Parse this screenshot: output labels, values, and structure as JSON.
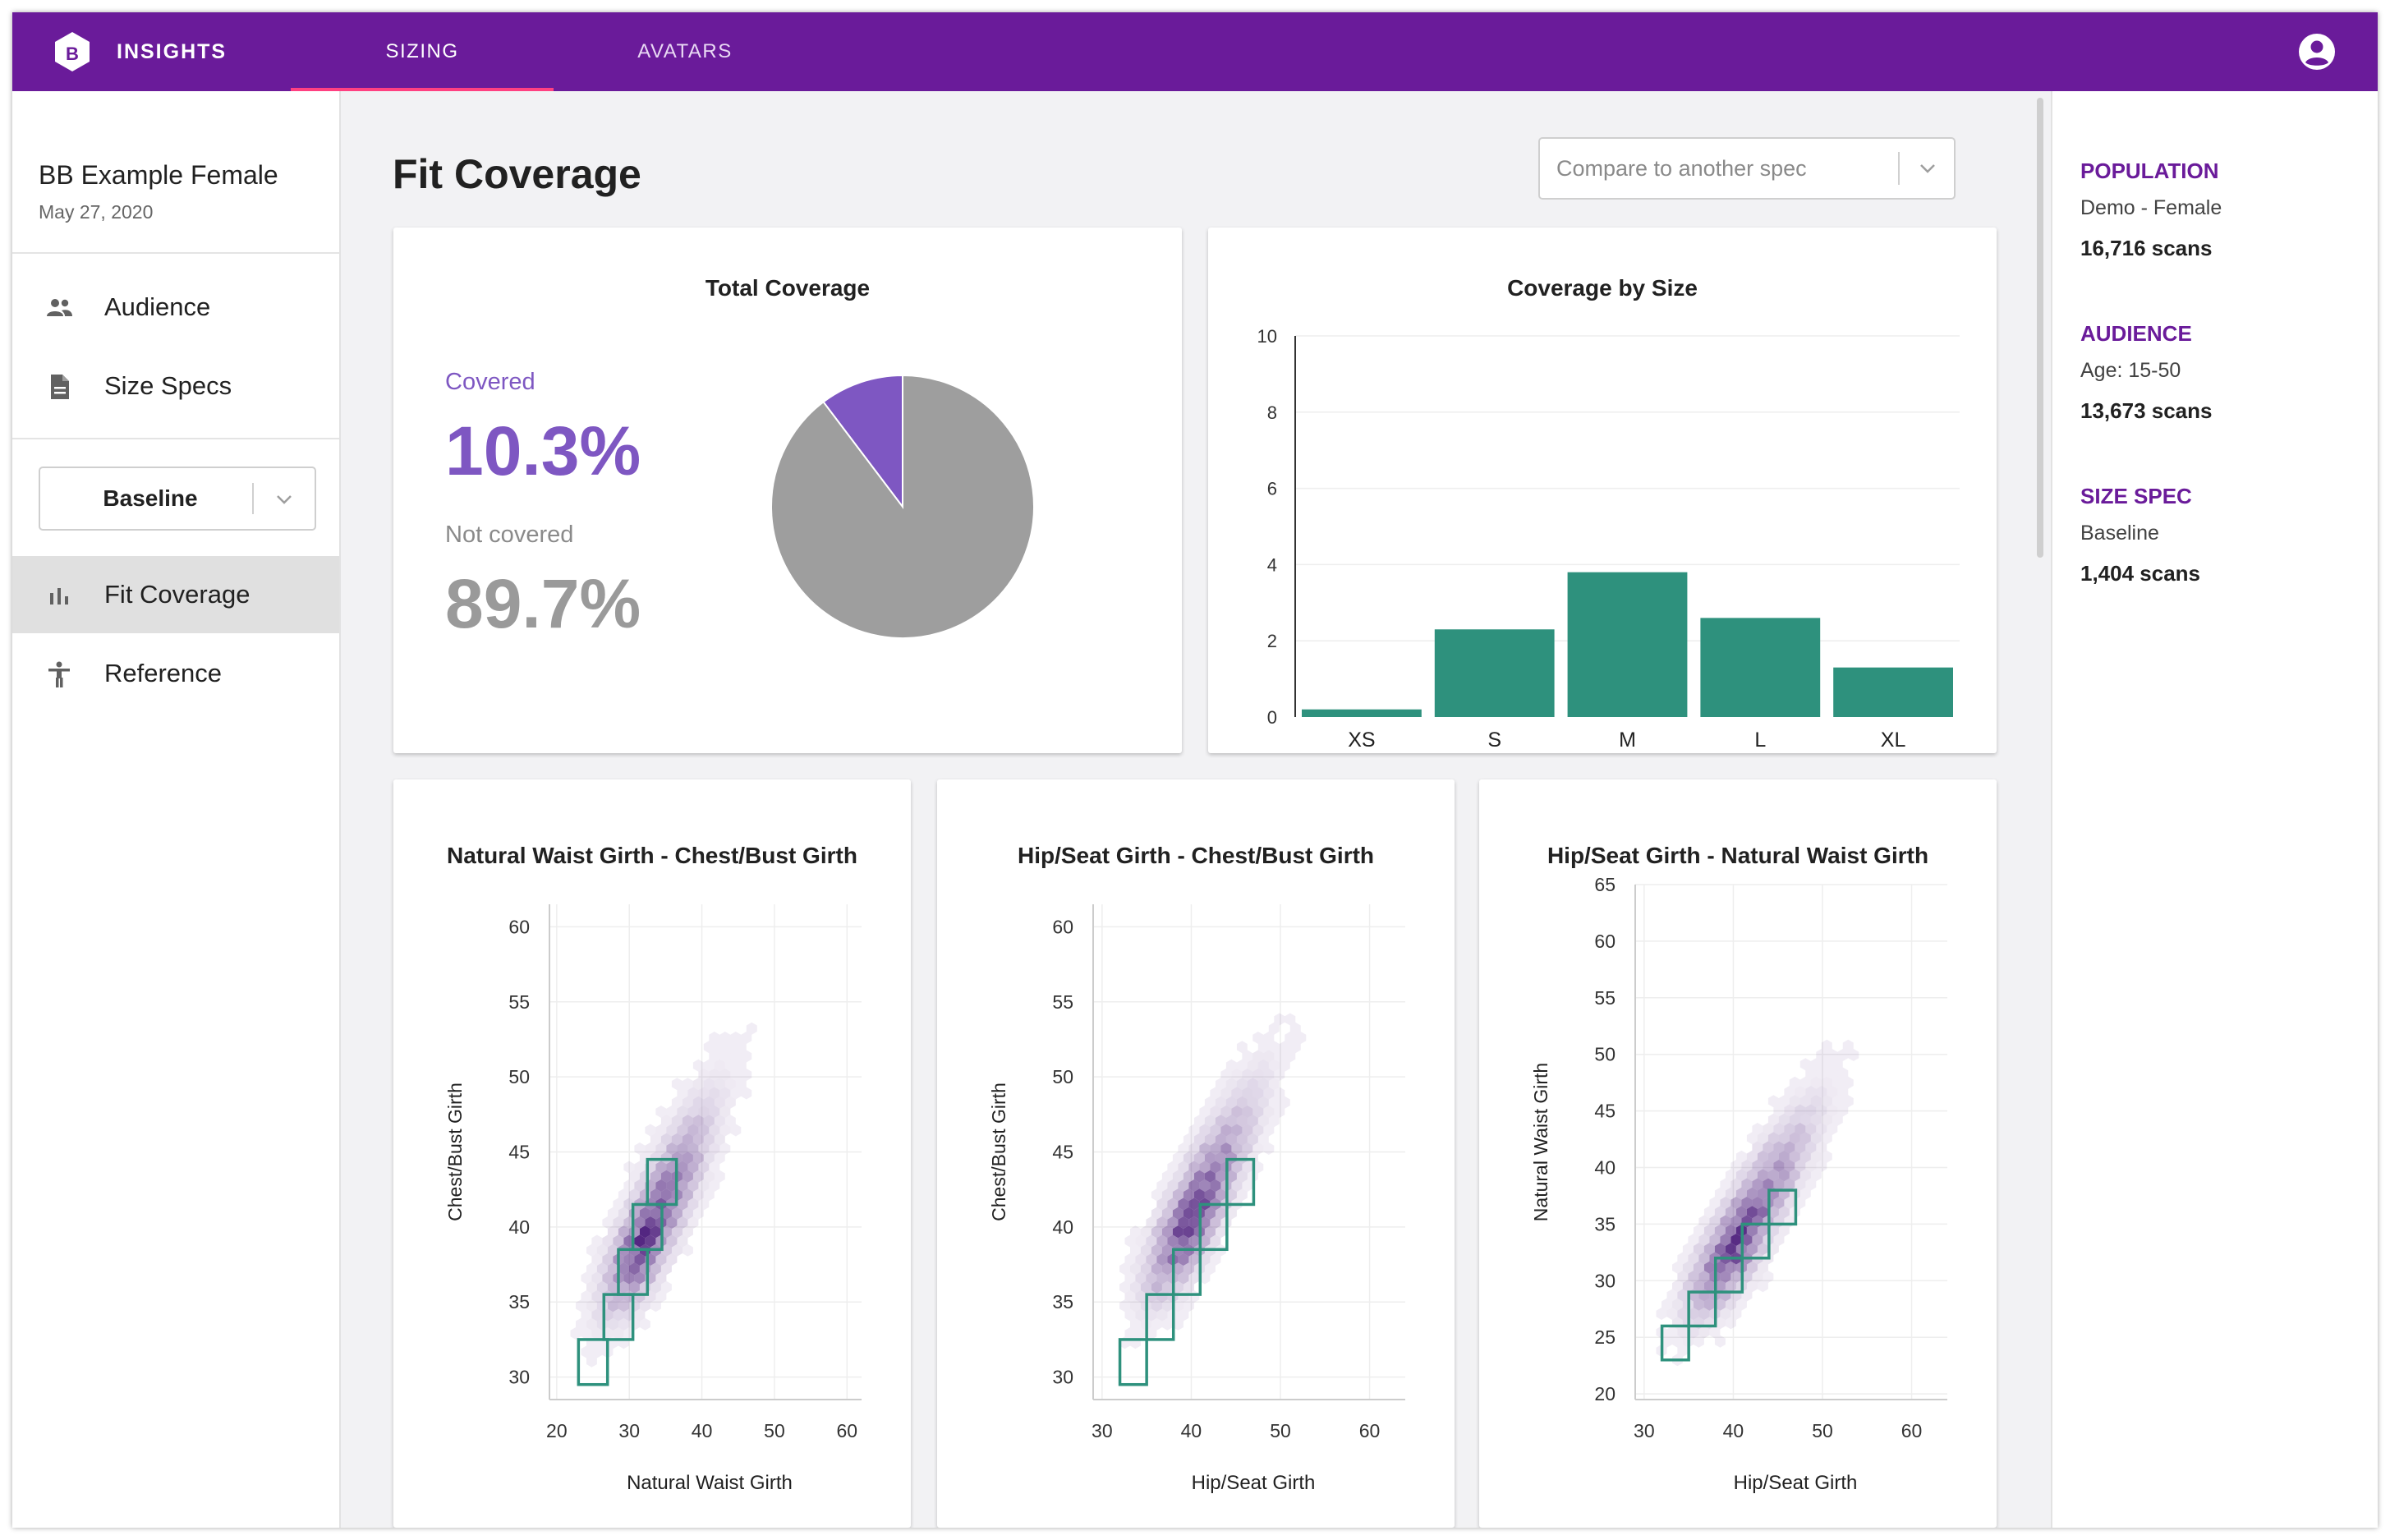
{
  "app": {
    "brand": "INSIGHTS",
    "logo_letter": "B"
  },
  "tabs": [
    {
      "label": "SIZING",
      "active": true
    },
    {
      "label": "AVATARS",
      "active": false
    }
  ],
  "colors": {
    "primary": "#6a1b9a",
    "accent_indicator": "#ff4081",
    "covered": "#7e57c2",
    "not_covered": "#9e9e9e",
    "bars": "#2e917d",
    "density": "#4a1a7a",
    "boxes": "#2e917d"
  },
  "project": {
    "name": "BB Example Female",
    "date": "May 27, 2020"
  },
  "sidebar": {
    "items": [
      {
        "label": "Audience",
        "icon": "people-icon"
      },
      {
        "label": "Size Specs",
        "icon": "document-icon"
      }
    ],
    "spec_select": {
      "value": "Baseline"
    },
    "sub_items": [
      {
        "label": "Fit Coverage",
        "icon": "bar-chart-icon",
        "selected": true
      },
      {
        "label": "Reference",
        "icon": "accessibility-icon",
        "selected": false
      }
    ]
  },
  "main": {
    "title": "Fit Coverage",
    "compare_placeholder": "Compare to another spec",
    "total_coverage": {
      "title": "Total Coverage",
      "covered_label": "Covered",
      "covered_value": "10.3%",
      "not_covered_label": "Not covered",
      "not_covered_value": "89.7%"
    }
  },
  "right_panel": {
    "population": {
      "heading": "POPULATION",
      "name": "Demo - Female",
      "count": "16,716 scans"
    },
    "audience": {
      "heading": "AUDIENCE",
      "name": "Age: 15-50",
      "count": "13,673 scans"
    },
    "size_spec": {
      "heading": "SIZE SPEC",
      "name": "Baseline",
      "count": "1,404 scans"
    }
  },
  "chart_data": [
    {
      "type": "pie",
      "title": "Total Coverage",
      "labels": [
        "Covered",
        "Not covered"
      ],
      "values": [
        10.3,
        89.7
      ]
    },
    {
      "type": "bar",
      "title": "Coverage by Size",
      "categories": [
        "XS",
        "S",
        "M",
        "L",
        "XL"
      ],
      "values": [
        0.2,
        2.3,
        3.8,
        2.6,
        1.3
      ],
      "ylim": [
        0,
        10
      ],
      "yticks": [
        0,
        2,
        4,
        6,
        8,
        10
      ],
      "grid": true
    },
    {
      "type": "heatmap",
      "title": "Natural Waist Girth - Chest/Bust Girth",
      "xlabel": "Natural Waist Girth",
      "ylabel": "Chest/Bust Girth",
      "xlim": [
        19,
        62
      ],
      "ylim": [
        28.5,
        61.5
      ],
      "xticks": [
        20,
        30,
        40,
        50,
        60
      ],
      "yticks": [
        30,
        35,
        40,
        45,
        50,
        55,
        60
      ],
      "density_center": [
        32,
        39
      ],
      "density_direction": [
        1.0,
        1.05
      ],
      "size_boxes": [
        [
          23,
          29.5,
          27,
          32.5
        ],
        [
          26.5,
          32.5,
          30.5,
          35.5
        ],
        [
          28.5,
          35.5,
          32.5,
          38.5
        ],
        [
          30.5,
          38.5,
          34.5,
          41.5
        ],
        [
          32.5,
          41.5,
          36.5,
          44.5
        ]
      ]
    },
    {
      "type": "heatmap",
      "title": "Hip/Seat Girth - Chest/Bust Girth",
      "xlabel": "Hip/Seat Girth",
      "ylabel": "Chest/Bust Girth",
      "xlim": [
        29,
        64
      ],
      "ylim": [
        28.5,
        61.5
      ],
      "xticks": [
        30,
        40,
        50,
        60
      ],
      "yticks": [
        30,
        35,
        40,
        45,
        50,
        55,
        60
      ],
      "density_center": [
        39.5,
        40
      ],
      "density_direction": [
        1.0,
        1.25
      ],
      "size_boxes": [
        [
          32,
          29.5,
          35,
          32.5
        ],
        [
          35,
          32.5,
          38,
          35.5
        ],
        [
          38,
          35.5,
          41,
          38.5
        ],
        [
          41,
          38.5,
          44,
          41.5
        ],
        [
          44,
          41.5,
          47,
          44.5
        ]
      ]
    },
    {
      "type": "heatmap",
      "title": "Hip/Seat Girth - Natural Waist Girth",
      "xlabel": "Hip/Seat Girth",
      "ylabel": "Natural Waist Girth",
      "xlim": [
        29,
        64
      ],
      "ylim": [
        19.5,
        65
      ],
      "xticks": [
        30,
        40,
        50,
        60
      ],
      "yticks": [
        20,
        25,
        30,
        35,
        40,
        45,
        50,
        55,
        60,
        65
      ],
      "density_center": [
        40,
        33
      ],
      "density_direction": [
        1.0,
        1.4
      ],
      "size_boxes": [
        [
          32,
          23,
          35,
          26
        ],
        [
          35,
          26,
          38,
          29
        ],
        [
          38,
          29,
          41,
          32
        ],
        [
          41,
          32,
          44,
          35
        ],
        [
          44,
          35,
          47,
          38
        ]
      ]
    }
  ]
}
